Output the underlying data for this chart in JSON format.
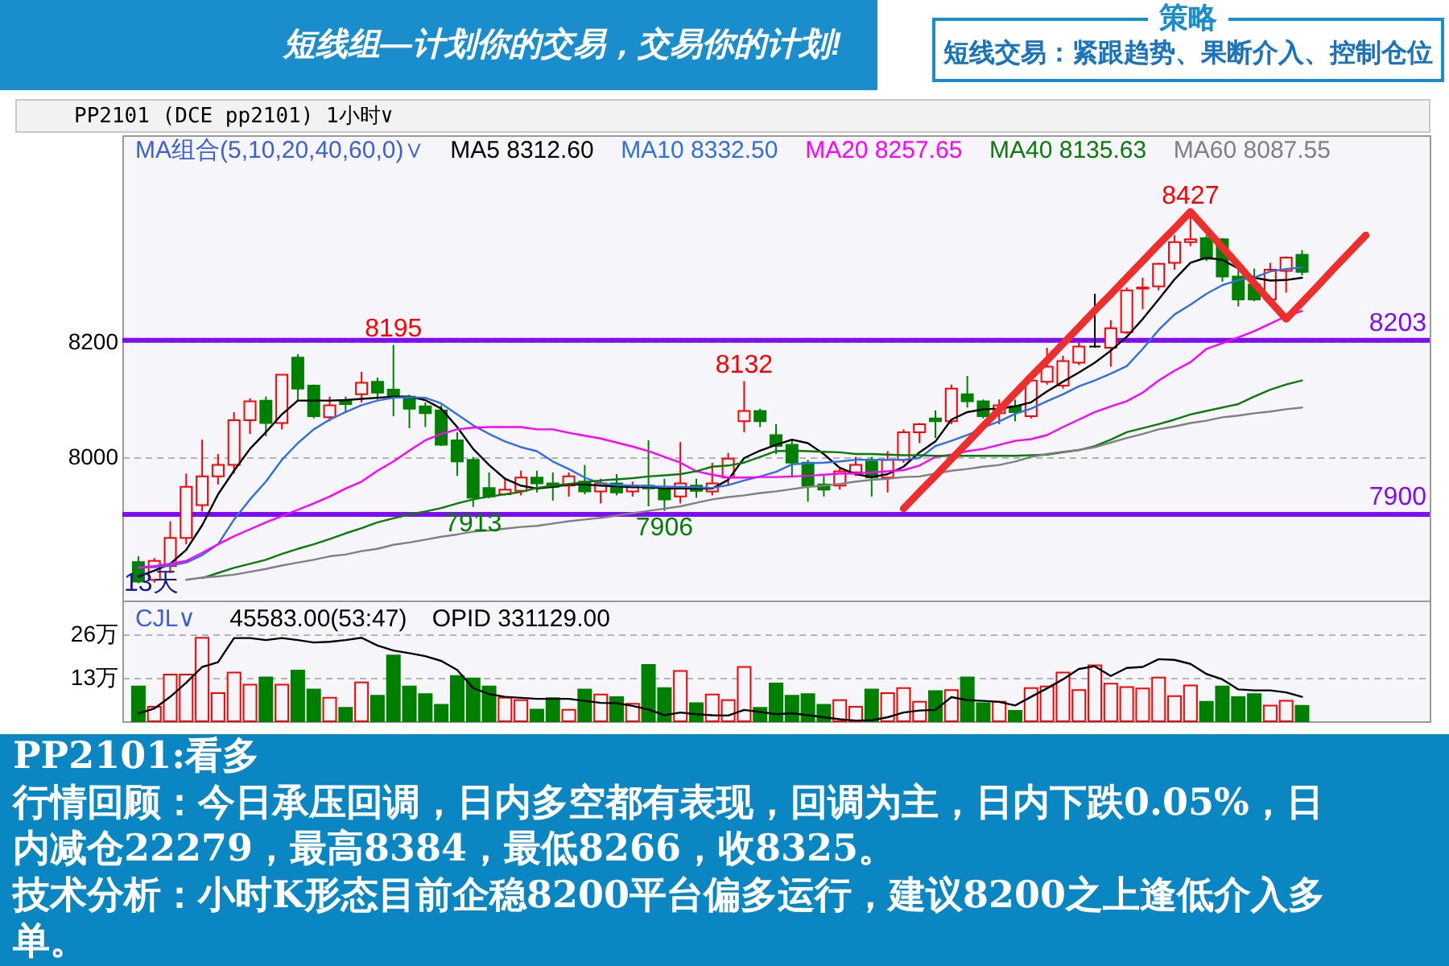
{
  "chart_data": [
    {
      "type": "other",
      "title": "短线组—计划你的交易，交易你的计划!",
      "annotations": [
        "策略",
        "短线交易：紧跟趋势、果断介入、控制仓位"
      ]
    },
    {
      "type": "candlestick",
      "title": "PP2101 (DCE pp2101) 1小时∨",
      "legend_title": "MA组合(5,10,20,40,60,0)∨",
      "legend": "top",
      "categories": [
        null,
        null,
        null,
        null,
        null,
        null,
        null,
        null,
        null,
        null,
        null,
        null,
        null,
        null,
        null,
        null,
        null,
        null,
        null,
        null,
        null,
        null,
        null,
        null,
        null,
        null,
        null,
        null,
        null,
        null,
        null,
        null,
        null,
        null,
        null,
        null,
        null,
        null,
        null,
        null,
        null,
        null,
        null,
        null,
        null,
        null,
        null,
        null,
        null,
        null,
        null,
        null,
        null,
        null,
        null,
        null,
        null,
        null,
        null,
        null,
        null,
        null,
        null,
        null,
        null,
        null,
        null,
        null,
        null,
        null,
        null,
        null,
        null,
        null,
        null,
        null,
        null,
        null,
        null,
        null,
        null
      ],
      "ohlc": [
        [
          7817,
          7827,
          7780,
          7783
        ],
        [
          7786,
          7824,
          7781,
          7819
        ],
        [
          7810,
          7888,
          7798,
          7859
        ],
        [
          7859,
          7971,
          7848,
          7948
        ],
        [
          7916,
          8030,
          7905,
          7966
        ],
        [
          7966,
          8005,
          7952,
          7986
        ],
        [
          7986,
          8078,
          7971,
          8064
        ],
        [
          8064,
          8102,
          8040,
          8097
        ],
        [
          8098,
          8105,
          8036,
          8059
        ],
        [
          8059,
          8143,
          8048,
          8143
        ],
        [
          8173,
          8179,
          8097,
          8119
        ],
        [
          8124,
          8126,
          8067,
          8071
        ],
        [
          8069,
          8105,
          8062,
          8090
        ],
        [
          8097,
          8105,
          8078,
          8092
        ],
        [
          8109,
          8148,
          8095,
          8129
        ],
        [
          8131,
          8138,
          8100,
          8112
        ],
        [
          8117,
          8195,
          8071,
          8105
        ],
        [
          8105,
          8108,
          8050,
          8084
        ],
        [
          8088,
          8095,
          8052,
          8076
        ],
        [
          8081,
          8090,
          8019,
          8021
        ],
        [
          8029,
          8043,
          7967,
          7992
        ],
        [
          7995,
          8000,
          7913,
          7929
        ],
        [
          7946,
          7973,
          7928,
          7931
        ],
        [
          7935,
          7962,
          7933,
          7943
        ],
        [
          7941,
          7976,
          7933,
          7964
        ],
        [
          7964,
          7976,
          7938,
          7954
        ],
        [
          7954,
          7973,
          7924,
          7948
        ],
        [
          7950,
          7973,
          7931,
          7966
        ],
        [
          7957,
          7986,
          7935,
          7940
        ],
        [
          7940,
          7962,
          7919,
          7954
        ],
        [
          7954,
          7970,
          7933,
          7938
        ],
        [
          7940,
          7957,
          7931,
          7950
        ],
        [
          7950,
          8029,
          7914,
          7945
        ],
        [
          7948,
          7962,
          7906,
          7926
        ],
        [
          7931,
          8026,
          7919,
          7954
        ],
        [
          7950,
          7962,
          7929,
          7941
        ],
        [
          7940,
          7990,
          7933,
          7954
        ],
        [
          7964,
          8007,
          7950,
          7997
        ],
        [
          8062,
          8132,
          8043,
          8080
        ],
        [
          8080,
          8084,
          8052,
          8062
        ],
        [
          8038,
          8057,
          8005,
          8019
        ],
        [
          8021,
          8029,
          7964,
          7990
        ],
        [
          7990,
          7995,
          7922,
          7950
        ],
        [
          7952,
          7967,
          7931,
          7943
        ],
        [
          7950,
          7981,
          7943,
          7975
        ],
        [
          7973,
          8000,
          7967,
          7986
        ],
        [
          7992,
          8000,
          7931,
          7964
        ],
        [
          7964,
          8010,
          7938,
          7995
        ],
        [
          7995,
          8048,
          7990,
          8043
        ],
        [
          8043,
          8059,
          8024,
          8057
        ],
        [
          8067,
          8081,
          8033,
          8062
        ],
        [
          8062,
          8126,
          8057,
          8119
        ],
        [
          8109,
          8141,
          8086,
          8097
        ],
        [
          8097,
          8100,
          8067,
          8071
        ],
        [
          8076,
          8100,
          8057,
          8090
        ],
        [
          8088,
          8100,
          8062,
          8078
        ],
        [
          8071,
          8145,
          8067,
          8133
        ],
        [
          8131,
          8190,
          8126,
          8157
        ],
        [
          8124,
          8176,
          8119,
          8167
        ],
        [
          8164,
          8200,
          8160,
          8192
        ],
        [
          8192,
          8284,
          8190,
          8192
        ],
        [
          8190,
          8238,
          8157,
          8224
        ],
        [
          8217,
          8295,
          8214,
          8290
        ],
        [
          8293,
          8312,
          8257,
          8295
        ],
        [
          8297,
          8338,
          8290,
          8336
        ],
        [
          8338,
          8386,
          8326,
          8374
        ],
        [
          8374,
          8427,
          8367,
          8379
        ],
        [
          8381,
          8386,
          8341,
          8345
        ],
        [
          8379,
          8381,
          8305,
          8314
        ],
        [
          8314,
          8328,
          8262,
          8274
        ],
        [
          8300,
          8328,
          8271,
          8274
        ],
        [
          8274,
          8338,
          8271,
          8326
        ],
        [
          8324,
          8349,
          8286,
          8347
        ],
        [
          8352,
          8360,
          8316,
          8322
        ],
        null,
        null,
        null,
        null,
        null,
        null,
        null
      ],
      "colors": [
        "#008000",
        "#ff0000",
        "#ff0000",
        "#ff0000",
        "#ff0000",
        "#ff0000",
        "#ff0000",
        "#ff0000",
        "#008000",
        "#ff0000",
        "#008000",
        "#008000",
        "#ff0000",
        "#008000",
        "#ff0000",
        "#008000",
        "#008000",
        "#008000",
        "#008000",
        "#008000",
        "#008000",
        "#008000",
        "#008000",
        "#ff0000",
        "#ff0000",
        "#008000",
        "#008000",
        "#ff0000",
        "#008000",
        "#ff0000",
        "#008000",
        "#ff0000",
        "#008000",
        "#008000",
        "#ff0000",
        "#008000",
        "#ff0000",
        "#ff0000",
        "#ff0000",
        "#008000",
        "#008000",
        "#008000",
        "#008000",
        "#008000",
        "#ff0000",
        "#ff0000",
        "#008000",
        "#ff0000",
        "#ff0000",
        "#ff0000",
        "#008000",
        "#ff0000",
        "#008000",
        "#008000",
        "#ff0000",
        "#008000",
        "#ff0000",
        "#ff0000",
        "#ff0000",
        "#ff0000",
        "#000000",
        "#ff0000",
        "#ff0000",
        "#ff0000",
        "#ff0000",
        "#ff0000",
        "#ff0000",
        "#008000",
        "#008000",
        "#008000",
        "#008000",
        "#ff0000",
        "#ff0000",
        "#008000",
        null,
        null,
        null,
        null,
        null,
        null,
        null
      ],
      "series": [
        {
          "type": "line",
          "name": "MA5 8312.60",
          "color": "#000000",
          "values": [
            7792,
            7802,
            7814,
            7838,
            7881,
            7935,
            7976,
            8014,
            8043,
            8074,
            8098,
            8098,
            8098,
            8099,
            8101,
            8103,
            8105,
            8105,
            8099,
            8084,
            8052,
            8014,
            7986,
            7962,
            7950,
            7945,
            7948,
            7952,
            7952,
            7950,
            7949,
            7947,
            7948,
            7945,
            7945,
            7945,
            7945,
            7960,
            7998,
            8011,
            8021,
            8030,
            8024,
            8005,
            7981,
            7970,
            7965,
            7970,
            7983,
            8008,
            8027,
            8065,
            8078,
            8083,
            8084,
            8088,
            8095,
            8114,
            8131,
            8147,
            8164,
            8185,
            8209,
            8240,
            8274,
            8309,
            8338,
            8347,
            8343,
            8328,
            8312,
            8307,
            8308,
            8312,
            null,
            null,
            null,
            null,
            null,
            null,
            null
          ]
        },
        {
          "type": "line",
          "name": "MA10 8332.50",
          "color": "#2f6fdf",
          "values": [
            7807,
            7808,
            7811,
            7816,
            7829,
            7848,
            7891,
            7926,
            7957,
            7995,
            8024,
            8048,
            8065,
            8078,
            8090,
            8098,
            8103,
            8104,
            8103,
            8093,
            8074,
            8055,
            8040,
            8027,
            8017,
            8010,
            7992,
            7979,
            7964,
            7954,
            7951,
            7950,
            7949,
            7948,
            7948,
            7947,
            7946,
            7951,
            7959,
            7966,
            7974,
            7987,
            7989,
            7990,
            7992,
            7995,
            7995,
            7995,
            7995,
            7998,
            8019,
            8028,
            8038,
            8051,
            8062,
            8075,
            8084,
            8097,
            8109,
            8123,
            8133,
            8145,
            8158,
            8188,
            8221,
            8248,
            8265,
            8284,
            8299,
            8308,
            8312,
            8323,
            8327,
            8330,
            null,
            null,
            null,
            null,
            null,
            null,
            null
          ]
        },
        {
          "type": "line",
          "name": "MA20 8257.65",
          "color": "#ff00ff",
          "values": [
            7808,
            7810,
            7814,
            7819,
            7833,
            7848,
            7862,
            7874,
            7886,
            7897,
            7908,
            7919,
            7931,
            7945,
            7957,
            7976,
            7992,
            8011,
            8029,
            8040,
            8048,
            8051,
            8052,
            8052,
            8052,
            8048,
            8048,
            8042,
            8037,
            8032,
            8025,
            8018,
            8010,
            8000,
            7990,
            7975,
            7969,
            7964,
            7964,
            7965,
            7965,
            7966,
            7967,
            7969,
            7971,
            7971,
            7973,
            7975,
            7977,
            7985,
            8000,
            8004,
            8010,
            8014,
            8021,
            8028,
            8031,
            8038,
            8052,
            8065,
            8078,
            8088,
            8097,
            8112,
            8133,
            8150,
            8165,
            8188,
            8198,
            8208,
            8219,
            8232,
            8245,
            8254,
            null,
            null,
            null,
            null,
            null,
            null,
            null
          ]
        },
        {
          "type": "line",
          "name": "MA40 8135.63",
          "color": "#0a7a0a",
          "values": [
            null,
            null,
            null,
            null,
            7789,
            7798,
            7807,
            7814,
            7821,
            7831,
            7840,
            7848,
            7857,
            7867,
            7876,
            7886,
            7893,
            7900,
            7905,
            7911,
            7919,
            7926,
            7931,
            7935,
            7939,
            7946,
            7950,
            7953,
            7956,
            7959,
            7961,
            7963,
            7966,
            7968,
            7970,
            7975,
            7983,
            7985,
            7990,
            8000,
            8010,
            8011,
            8010,
            8009,
            8008,
            8005,
            8005,
            8004,
            8003,
            8003,
            8002,
            8002,
            8002,
            8002,
            8002,
            8002,
            8003,
            8004,
            8008,
            8012,
            8019,
            8030,
            8043,
            8050,
            8057,
            8065,
            8074,
            8080,
            8086,
            8092,
            8105,
            8117,
            8126,
            8133,
            null,
            null,
            null,
            null,
            null,
            null,
            null
          ]
        },
        {
          "type": "line",
          "name": "MA60 8087.55",
          "color": "#808080",
          "values": [
            null,
            null,
            null,
            7786,
            7790,
            7792,
            7795,
            7800,
            7805,
            7811,
            7816,
            7821,
            7827,
            7830,
            7836,
            7840,
            7847,
            7851,
            7856,
            7861,
            7865,
            7870,
            7872,
            7875,
            7878,
            7880,
            7884,
            7888,
            7891,
            7894,
            7898,
            7902,
            7906,
            7910,
            7914,
            7920,
            7926,
            7930,
            7933,
            7937,
            7940,
            7944,
            7948,
            7950,
            7953,
            7957,
            7960,
            7962,
            7965,
            7966,
            7971,
            7976,
            7979,
            7983,
            7986,
            7992,
            8000,
            8005,
            8009,
            8012,
            8017,
            8025,
            8033,
            8040,
            8048,
            8053,
            8059,
            8063,
            8069,
            8072,
            8076,
            8079,
            8083,
            8086,
            null,
            null,
            null,
            null,
            null,
            null,
            null
          ]
        },
        {
          "type": "line",
          "color": "#ee2d2d",
          "values": [
            null,
            null,
            null,
            null,
            null,
            null,
            null,
            null,
            null,
            null,
            null,
            null,
            null,
            null,
            null,
            null,
            null,
            null,
            null,
            null,
            null,
            null,
            null,
            null,
            null,
            null,
            null,
            null,
            null,
            null,
            null,
            null,
            null,
            null,
            null,
            null,
            null,
            null,
            null,
            null,
            null,
            null,
            null,
            null,
            null,
            null,
            null,
            null,
            7910,
            7939,
            7967,
            7996,
            8025,
            8054,
            8082,
            8111,
            8140,
            8168,
            8197,
            8226,
            8255,
            8283,
            8312,
            8341,
            8370,
            8398,
            8427,
            8396,
            8365,
            8334,
            8302,
            8271,
            8240,
            8269,
            8298,
            8328,
            8357,
            8386,
            null,
            null,
            null
          ]
        }
      ],
      "ylim": [
        7750,
        8560
      ],
      "yticks": [
        8000,
        8200
      ],
      "grid": "y",
      "ref_lines": [
        {
          "axis": "y",
          "value": 8203,
          "label": "8203",
          "color": "#7d0df5"
        },
        {
          "axis": "y",
          "value": 7900,
          "label": "7900",
          "color": "#7d0df5"
        }
      ],
      "annotations": [
        {
          "text": "8195",
          "y": 8195
        },
        {
          "text": "8132",
          "y": 8132
        },
        {
          "text": "8427",
          "y": 8427
        },
        {
          "text": "7913",
          "y": 7913
        },
        {
          "text": "7906",
          "y": 7906
        },
        "13天"
      ]
    },
    {
      "type": "bar",
      "legend_title": "CJL∨",
      "legend": "top",
      "categories": [
        null,
        null,
        null,
        null,
        null,
        null,
        null,
        null,
        null,
        null,
        null,
        null,
        null,
        null,
        null,
        null,
        null,
        null,
        null,
        null,
        null,
        null,
        null,
        null,
        null,
        null,
        null,
        null,
        null,
        null,
        null,
        null,
        null,
        null,
        null,
        null,
        null,
        null,
        null,
        null,
        null,
        null,
        null,
        null,
        null,
        null,
        null,
        null,
        null,
        null,
        null,
        null,
        null,
        null,
        null,
        null,
        null,
        null,
        null,
        null,
        null,
        null,
        null,
        null,
        null,
        null,
        null,
        null,
        null,
        null,
        null,
        null,
        null,
        null,
        null,
        null,
        null,
        null,
        null,
        null,
        null
      ],
      "series": [
        {
          "type": "bar",
          "colors": [
            "#008000",
            "#ff0000",
            "#ff0000",
            "#ff0000",
            "#ff0000",
            "#ff0000",
            "#ff0000",
            "#ff0000",
            "#008000",
            "#ff0000",
            "#008000",
            "#008000",
            "#ff0000",
            "#008000",
            "#ff0000",
            "#008000",
            "#008000",
            "#008000",
            "#008000",
            "#008000",
            "#008000",
            "#008000",
            "#008000",
            "#ff0000",
            "#ff0000",
            "#008000",
            "#008000",
            "#ff0000",
            "#008000",
            "#ff0000",
            "#008000",
            "#ff0000",
            "#008000",
            "#008000",
            "#ff0000",
            "#008000",
            "#ff0000",
            "#ff0000",
            "#ff0000",
            "#008000",
            "#008000",
            "#008000",
            "#008000",
            "#008000",
            "#ff0000",
            "#ff0000",
            "#008000",
            "#ff0000",
            "#ff0000",
            "#ff0000",
            "#008000",
            "#ff0000",
            "#008000",
            "#008000",
            "#ff0000",
            "#008000",
            "#ff0000",
            "#ff0000",
            "#ff0000",
            "#ff0000",
            "#ff0000",
            "#ff0000",
            "#ff0000",
            "#ff0000",
            "#ff0000",
            "#ff0000",
            "#ff0000",
            "#008000",
            "#008000",
            "#008000",
            "#008000",
            "#ff0000",
            "#ff0000",
            "#008000",
            null,
            null,
            null,
            null,
            null,
            null,
            null
          ],
          "values": [
            10.4,
            4.3,
            13.9,
            13.9,
            24.9,
            8.4,
            14.5,
            10.9,
            13.1,
            10.9,
            15.1,
            9.5,
            7.0,
            4.0,
            11.6,
            7.6,
            19.6,
            10.4,
            8.1,
            4.9,
            13.5,
            12.8,
            10.4,
            7.0,
            6.3,
            3.5,
            6.9,
            3.4,
            9.5,
            8.0,
            7.2,
            5.2,
            16.8,
            9.9,
            15.0,
            5.4,
            8.0,
            6.3,
            16.2,
            4.0,
            11.3,
            7.6,
            8.1,
            4.9,
            6.3,
            4.3,
            9.5,
            8.4,
            9.9,
            5.8,
            9.0,
            9.3,
            13.1,
            5.4,
            5.8,
            3.1,
            9.9,
            10.4,
            14.5,
            9.3,
            16.7,
            11.2,
            10.2,
            9.8,
            13.0,
            7.5,
            10.7,
            5.8,
            10.4,
            7.2,
            8.1,
            4.7,
            6.1,
            4.6,
            null,
            null,
            null,
            null,
            null,
            null,
            null
          ]
        },
        {
          "type": "line",
          "name": "OPID 331129.00",
          "color": "#000000",
          "values": [
            2.3,
            3.8,
            7.3,
            11.5,
            16.2,
            17.6,
            24.8,
            24.8,
            24.2,
            24.8,
            24.2,
            23.5,
            23.7,
            24.2,
            24.9,
            22.6,
            21.1,
            20.3,
            19.4,
            18.0,
            15.3,
            9.9,
            8.1,
            7.3,
            7.0,
            6.7,
            6.7,
            6.7,
            6.1,
            5.5,
            5.4,
            4.6,
            3.5,
            1.8,
            2.6,
            2.1,
            1.8,
            1.7,
            3.4,
            2.8,
            2.1,
            2.4,
            1.8,
            1.2,
            0.6,
            0.2,
            0.3,
            1.2,
            2.6,
            3.2,
            3.4,
            7.2,
            6.3,
            6.1,
            5.8,
            4.7,
            7.3,
            9.8,
            12.5,
            15.6,
            16.4,
            13.5,
            15.9,
            16.2,
            18.5,
            18.3,
            17.1,
            14.1,
            12.5,
            9.5,
            9.2,
            9.2,
            8.6,
            7.3,
            null,
            null,
            null,
            null,
            null,
            null,
            null
          ]
        }
      ],
      "ylim": [
        0,
        36
      ],
      "yticks": [
        {
          "value": 13,
          "label": "13万"
        },
        {
          "value": 26,
          "label": "26万"
        }
      ],
      "grid": "y",
      "annotations": [
        "45583.00(53:47)"
      ]
    },
    {
      "type": "other",
      "title": "PP2101:看多",
      "annotations": [
        "行情回顾：今日承压回调，日内多空都有表现，回调为主，日内下跌0.05%，日内减仓22279，最高8384，最低8266，收8325。",
        "技术分析：小时K形态目前企稳8200平台偏多运行，建议8200之上逢低介入多单。"
      ]
    }
  ]
}
